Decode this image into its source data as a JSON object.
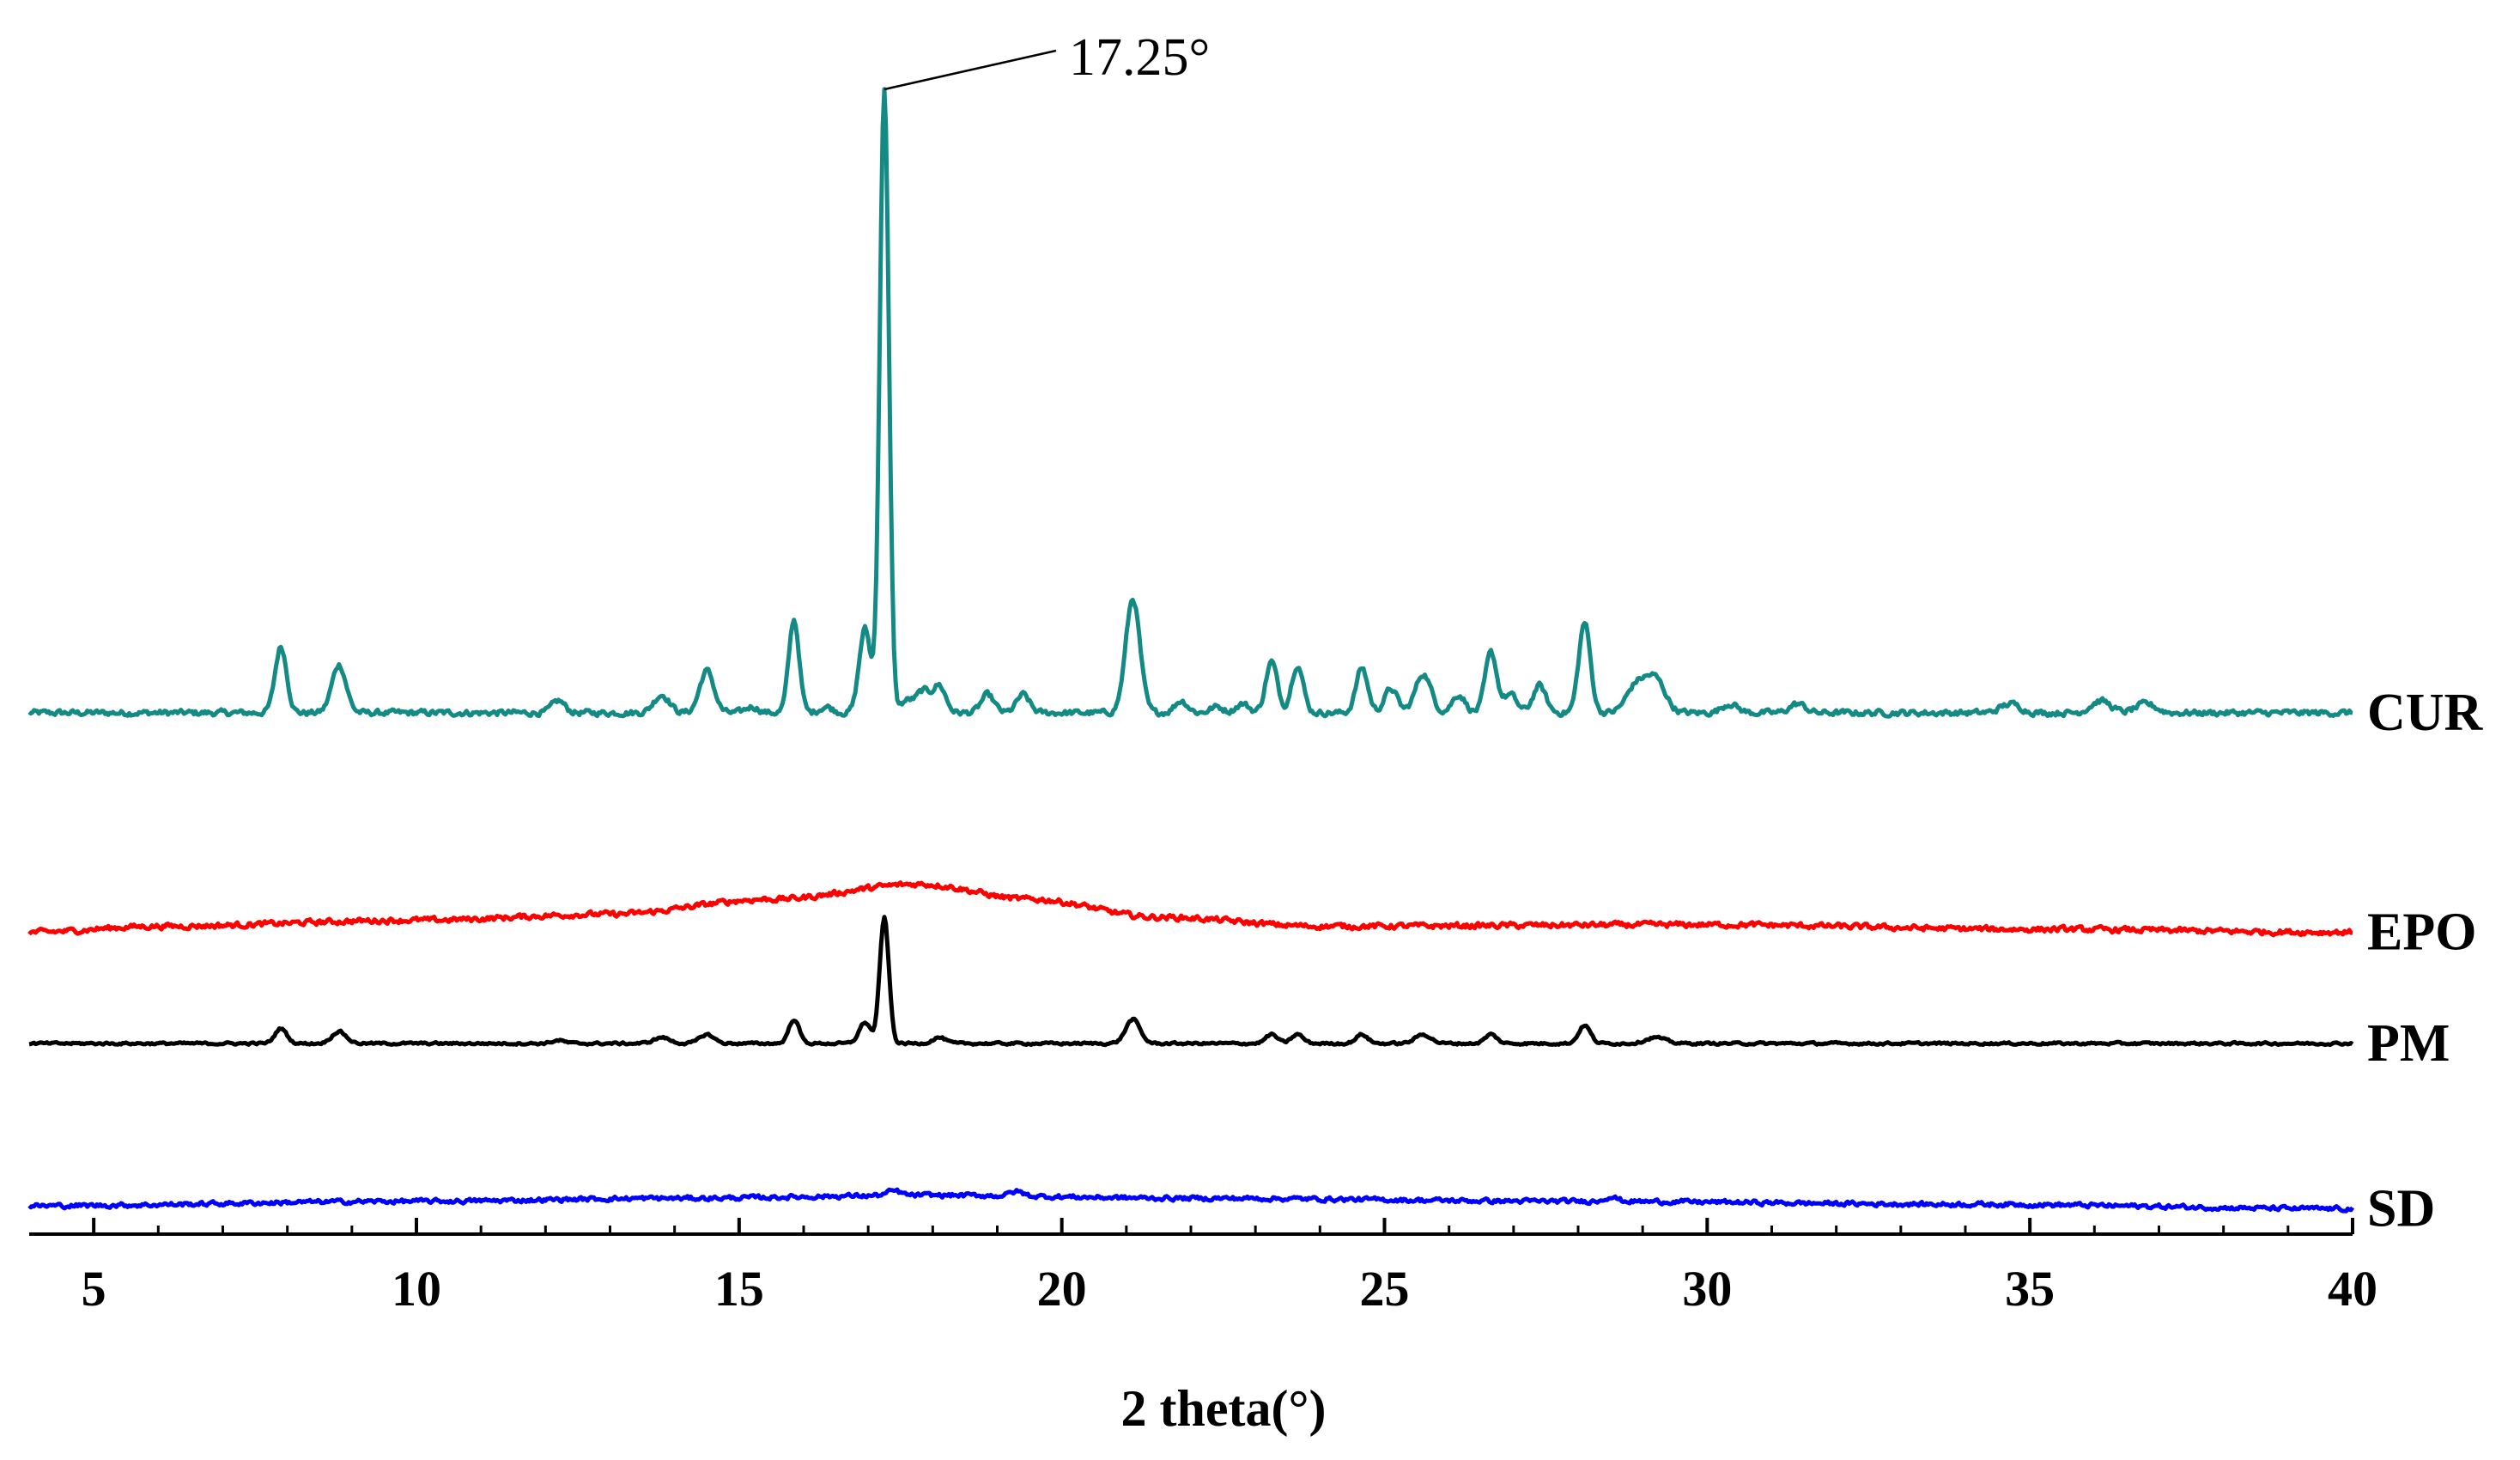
{
  "chart_data": {
    "type": "line",
    "title": "",
    "xlabel": "2 theta(°)",
    "ylabel": "",
    "xlim": [
      4,
      40
    ],
    "x_ticks": [
      5,
      10,
      15,
      20,
      25,
      30,
      35,
      40
    ],
    "x_tick_labels": [
      "5",
      "10",
      "15",
      "20",
      "25",
      "30",
      "35",
      "40"
    ],
    "y_axis_visible": false,
    "grid": false,
    "legend": "labels at right end of each trace",
    "annotations": [
      {
        "text": "17.25°",
        "x": 17.25,
        "series": "CUR"
      }
    ],
    "series": [
      {
        "name": "CUR",
        "color": "#138a84",
        "baseline": 0,
        "noise": 1.5,
        "background": [
          [
            4,
            0
          ],
          [
            40,
            0
          ]
        ],
        "peaks": [
          [
            7.9,
            22,
            0.09
          ],
          [
            8.8,
            16,
            0.11
          ],
          [
            12.2,
            4,
            0.1
          ],
          [
            13.8,
            6,
            0.12
          ],
          [
            14.5,
            14,
            0.11
          ],
          [
            15.2,
            2,
            0.1
          ],
          [
            15.85,
            31,
            0.08
          ],
          [
            16.35,
            2,
            0.1
          ],
          [
            16.95,
            28,
            0.09
          ],
          [
            17.25,
            208,
            0.07
          ],
          [
            17.6,
            4,
            0.1
          ],
          [
            17.85,
            7,
            0.1
          ],
          [
            18.1,
            9,
            0.1
          ],
          [
            18.85,
            6,
            0.1
          ],
          [
            19.4,
            6,
            0.1
          ],
          [
            21.1,
            38,
            0.11
          ],
          [
            21.85,
            4,
            0.1
          ],
          [
            22.4,
            2,
            0.1
          ],
          [
            22.8,
            3,
            0.1
          ],
          [
            23.25,
            17,
            0.09
          ],
          [
            23.65,
            16,
            0.09
          ],
          [
            24.65,
            15,
            0.09
          ],
          [
            25.1,
            8,
            0.1
          ],
          [
            25.6,
            13,
            0.12
          ],
          [
            26.15,
            6,
            0.1
          ],
          [
            26.65,
            20,
            0.09
          ],
          [
            26.95,
            6,
            0.1
          ],
          [
            27.4,
            9,
            0.1
          ],
          [
            28.1,
            30,
            0.09
          ],
          [
            28.9,
            9,
            0.15
          ],
          [
            29.2,
            11,
            0.15
          ],
          [
            30.35,
            3,
            0.12
          ],
          [
            31.4,
            3,
            0.12
          ],
          [
            34.7,
            3,
            0.15
          ],
          [
            36.1,
            4,
            0.15
          ],
          [
            36.8,
            3,
            0.15
          ]
        ]
      },
      {
        "name": "EPO",
        "color": "#ff0000",
        "baseline": -73,
        "noise": 1.4,
        "background": [
          [
            4,
            0
          ],
          [
            6,
            2
          ],
          [
            10,
            4
          ],
          [
            13,
            6
          ],
          [
            15.5,
            11
          ],
          [
            17.8,
            16
          ],
          [
            19.5,
            11
          ],
          [
            21.5,
            5
          ],
          [
            24,
            2
          ],
          [
            30,
            2.5
          ],
          [
            35,
            1
          ],
          [
            40,
            0
          ]
        ],
        "peaks": []
      },
      {
        "name": "PM",
        "color": "#000000",
        "baseline": -110,
        "noise": 0.6,
        "background": [
          [
            4,
            0
          ],
          [
            40,
            0
          ]
        ],
        "peaks": [
          [
            7.9,
            5,
            0.09
          ],
          [
            8.8,
            4,
            0.11
          ],
          [
            12.2,
            1,
            0.1
          ],
          [
            13.8,
            2,
            0.12
          ],
          [
            14.5,
            3,
            0.11
          ],
          [
            15.85,
            8,
            0.08
          ],
          [
            16.95,
            7,
            0.09
          ],
          [
            17.25,
            42,
            0.07
          ],
          [
            18.1,
            2,
            0.1
          ],
          [
            21.1,
            8,
            0.11
          ],
          [
            23.25,
            3,
            0.09
          ],
          [
            23.65,
            3,
            0.09
          ],
          [
            24.65,
            3,
            0.09
          ],
          [
            25.6,
            3,
            0.12
          ],
          [
            26.65,
            3,
            0.09
          ],
          [
            28.1,
            6,
            0.09
          ],
          [
            29.2,
            2,
            0.15
          ]
        ]
      },
      {
        "name": "SD",
        "color": "#0000ff",
        "baseline": -164,
        "noise": 1.1,
        "background": [
          [
            4,
            0
          ],
          [
            10,
            1.5
          ],
          [
            14,
            2.5
          ],
          [
            18,
            3.5
          ],
          [
            22,
            2.5
          ],
          [
            28,
            1.5
          ],
          [
            34,
            0.5
          ],
          [
            40,
            -1
          ]
        ],
        "peaks": [
          [
            17.4,
            1.5,
            0.1
          ],
          [
            19.3,
            1.5,
            0.1
          ],
          [
            28.5,
            1.5,
            0.1
          ]
        ]
      }
    ]
  }
}
